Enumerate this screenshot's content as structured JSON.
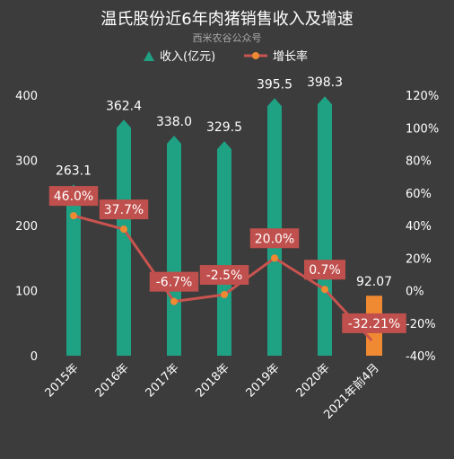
{
  "chart_data": {
    "type": "bar+line",
    "title": "温氏股份近6年肉猪销售收入及增速",
    "subtitle": "西米农谷公众号",
    "categories": [
      "2015年",
      "2016年",
      "2017年",
      "2018年",
      "2019年",
      "2020年",
      "2021年前4月"
    ],
    "series": [
      {
        "name": "收入(亿元)",
        "type": "bar",
        "axis": "left",
        "values": [
          263.1,
          362.4,
          338.0,
          329.5,
          395.5,
          398.3,
          92.07
        ],
        "labels": [
          "263.1",
          "362.4",
          "338.0",
          "329.5",
          "395.5",
          "398.3",
          "92.07"
        ]
      },
      {
        "name": "增长率",
        "type": "line",
        "axis": "right",
        "values": [
          46.0,
          37.7,
          -6.7,
          -2.5,
          20.0,
          0.7,
          -32.21
        ],
        "labels": [
          "46.0%",
          "37.7%",
          "-6.7%",
          "-2.5%",
          "20.0%",
          "0.7%",
          "-32.21%"
        ]
      }
    ],
    "y_left": {
      "ylim": [
        0,
        400
      ],
      "ticks": [
        "0",
        "100",
        "200",
        "300",
        "400"
      ]
    },
    "y_right": {
      "ylim": [
        -40,
        120
      ],
      "ticks": [
        "-40%",
        "-20%",
        "0%",
        "20%",
        "40%",
        "60%",
        "80%",
        "100%",
        "120%"
      ]
    },
    "grid": false,
    "legend": "top-center",
    "colors": {
      "background": "#3c3c3c",
      "bar": "#1fa184",
      "bar_highlight": "#f08a32",
      "line": "#c9534f",
      "marker": "#f08a32",
      "label_box": "#c0504d",
      "text": "#ffffff",
      "subtitle": "#aaaaaa"
    }
  }
}
